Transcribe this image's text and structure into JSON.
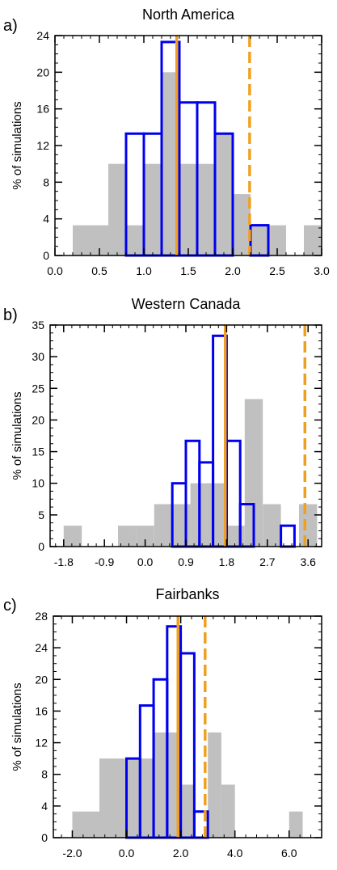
{
  "figure": {
    "colors": {
      "gray_bars": "#c0c0c0",
      "blue_outline": "#0000ee",
      "orange_line": "#f0a020"
    }
  },
  "chart_data": [
    {
      "type": "bar",
      "panel_label": "a)",
      "title": "North America",
      "ylabel": "% of simulations",
      "xlabel": "",
      "xlim": [
        0.0,
        3.0
      ],
      "ylim": [
        0,
        24
      ],
      "xticks": [
        0.0,
        0.5,
        1.0,
        1.5,
        2.0,
        2.5,
        3.0
      ],
      "xtick_labels": [
        "0.0",
        "0.5",
        "1.0",
        "1.5",
        "2.0",
        "2.5",
        "3.0"
      ],
      "yticks": [
        0,
        4,
        8,
        12,
        16,
        20,
        24
      ],
      "ytick_labels": [
        "0",
        "4",
        "8",
        "12",
        "16",
        "20",
        "24"
      ],
      "gray_histogram": {
        "bin_edges": [
          0.2,
          0.4,
          0.6,
          0.8,
          1.0,
          1.2,
          1.4,
          1.6,
          1.8,
          2.0,
          2.2,
          2.4,
          2.6,
          2.8,
          3.0
        ],
        "values": [
          3.3,
          3.3,
          10.0,
          3.3,
          10.0,
          20.0,
          10.0,
          10.0,
          13.3,
          6.7,
          3.3,
          3.3,
          0,
          3.3
        ]
      },
      "blue_histogram": {
        "bin_edges": [
          0.8,
          1.0,
          1.2,
          1.4,
          1.6,
          1.8,
          2.0,
          2.2,
          2.4
        ],
        "values": [
          13.3,
          13.3,
          23.3,
          16.7,
          16.7,
          13.3,
          0,
          3.3
        ]
      },
      "solid_line_x": 1.37,
      "dashed_line_x": 2.19
    },
    {
      "type": "bar",
      "panel_label": "b)",
      "title": "Western Canada",
      "ylabel": "% of simulations",
      "xlabel": "",
      "xlim": [
        -2.1,
        3.9
      ],
      "ylim": [
        0,
        35
      ],
      "xticks": [
        -1.8,
        -0.9,
        0.0,
        0.9,
        1.8,
        2.7,
        3.6
      ],
      "xtick_labels": [
        "-1.8",
        "-0.9",
        "0.0",
        "0.9",
        "1.8",
        "2.7",
        "3.6"
      ],
      "yticks": [
        0,
        5,
        10,
        15,
        20,
        25,
        30,
        35
      ],
      "ytick_labels": [
        "0",
        "5",
        "10",
        "15",
        "20",
        "25",
        "30",
        "35"
      ],
      "gray_histogram": {
        "bin_edges": [
          -1.8,
          -1.4,
          -1.0,
          -0.6,
          -0.2,
          0.2,
          0.6,
          1.0,
          1.4,
          1.8,
          2.2,
          2.6,
          3.0,
          3.4,
          3.8
        ],
        "values": [
          3.3,
          0,
          0,
          3.3,
          3.3,
          6.7,
          6.7,
          10.0,
          10.0,
          3.3,
          23.3,
          6.7,
          0,
          6.7
        ]
      },
      "blue_histogram": {
        "bin_edges": [
          0.6,
          0.9,
          1.2,
          1.5,
          1.8,
          2.1,
          2.4,
          2.7,
          3.0,
          3.3
        ],
        "values": [
          10.0,
          16.7,
          13.3,
          33.3,
          16.7,
          6.7,
          0,
          0,
          3.3
        ]
      },
      "solid_line_x": 1.77,
      "dashed_line_x": 3.53
    },
    {
      "type": "bar",
      "panel_label": "c)",
      "title": "Fairbanks",
      "ylabel": "% of simulations",
      "xlabel": "",
      "xlim": [
        -2.7,
        7.2
      ],
      "ylim": [
        0,
        28
      ],
      "xticks": [
        -2.0,
        0.0,
        2.0,
        4.0,
        6.0
      ],
      "xtick_labels": [
        "-2.0",
        "0.0",
        "2.0",
        "4.0",
        "6.0"
      ],
      "yticks": [
        0,
        4,
        8,
        12,
        16,
        20,
        24,
        28
      ],
      "ytick_labels": [
        "0",
        "4",
        "8",
        "12",
        "16",
        "20",
        "24",
        "28"
      ],
      "gray_histogram": {
        "bin_edges": [
          -2.0,
          -1.0,
          0.0,
          0.5,
          1.0,
          1.5,
          2.0,
          2.5,
          3.0,
          3.5,
          4.0,
          4.5,
          6.0,
          6.5
        ],
        "values": [
          3.3,
          10.0,
          10.0,
          10.0,
          13.3,
          13.3,
          6.7,
          0,
          13.3,
          6.7,
          0,
          0,
          3.3
        ]
      },
      "blue_histogram": {
        "bin_edges": [
          0.0,
          0.5,
          1.0,
          1.5,
          2.0,
          2.5,
          3.0
        ],
        "values": [
          10.0,
          16.7,
          20.0,
          26.7,
          23.3,
          3.3
        ]
      },
      "solid_line_x": 1.9,
      "dashed_line_x": 2.9
    }
  ]
}
